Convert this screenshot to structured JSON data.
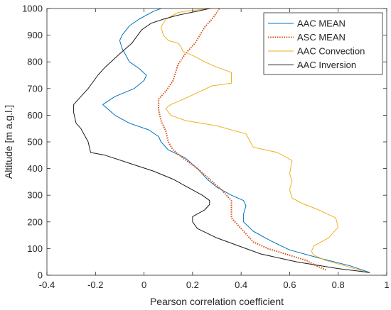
{
  "chart_data": {
    "type": "line",
    "title": "",
    "xlabel": "Pearson correlation coefficient",
    "ylabel": "Altitude [m a.g.l.]",
    "xlim": [
      -0.4,
      1.0
    ],
    "ylim": [
      0,
      1000
    ],
    "xticks": [
      "-0.4",
      "-0.2",
      "0",
      "0.2",
      "0.4",
      "0.6",
      "0.8",
      "1"
    ],
    "yticks": [
      "0",
      "100",
      "200",
      "300",
      "400",
      "500",
      "600",
      "700",
      "800",
      "900",
      "1000"
    ],
    "grid": false,
    "legend_position": "top-right",
    "series": [
      {
        "name": "AAC MEAN",
        "color": "#0072BD",
        "style": "solid",
        "points": [
          [
            0.93,
            10
          ],
          [
            0.85,
            35
          ],
          [
            0.72,
            65
          ],
          [
            0.6,
            95
          ],
          [
            0.52,
            130
          ],
          [
            0.45,
            165
          ],
          [
            0.41,
            200
          ],
          [
            0.41,
            230
          ],
          [
            0.42,
            260
          ],
          [
            0.41,
            280
          ],
          [
            0.36,
            300
          ],
          [
            0.3,
            330
          ],
          [
            0.26,
            360
          ],
          [
            0.22,
            400
          ],
          [
            0.17,
            440
          ],
          [
            0.1,
            470
          ],
          [
            0.07,
            500
          ],
          [
            0.06,
            520
          ],
          [
            0.02,
            545
          ],
          [
            -0.06,
            570
          ],
          [
            -0.12,
            600
          ],
          [
            -0.17,
            640
          ],
          [
            -0.12,
            670
          ],
          [
            -0.04,
            700
          ],
          [
            0.0,
            730
          ],
          [
            0.01,
            750
          ],
          [
            -0.02,
            775
          ],
          [
            -0.06,
            800
          ],
          [
            -0.09,
            850
          ],
          [
            -0.1,
            880
          ],
          [
            -0.09,
            900
          ],
          [
            -0.06,
            935
          ],
          [
            -0.02,
            960
          ],
          [
            0.04,
            990
          ],
          [
            0.07,
            1000
          ]
        ]
      },
      {
        "name": "ASC MEAN",
        "color": "#D95319",
        "style": "dotted",
        "points": [
          [
            0.75,
            20
          ],
          [
            0.71,
            35
          ],
          [
            0.67,
            55
          ],
          [
            0.6,
            75
          ],
          [
            0.51,
            100
          ],
          [
            0.45,
            125
          ],
          [
            0.42,
            155
          ],
          [
            0.39,
            185
          ],
          [
            0.36,
            215
          ],
          [
            0.36,
            250
          ],
          [
            0.36,
            280
          ],
          [
            0.32,
            320
          ],
          [
            0.27,
            360
          ],
          [
            0.22,
            400
          ],
          [
            0.16,
            440
          ],
          [
            0.12,
            470
          ],
          [
            0.1,
            500
          ],
          [
            0.09,
            540
          ],
          [
            0.07,
            580
          ],
          [
            0.06,
            620
          ],
          [
            0.06,
            660
          ],
          [
            0.09,
            690
          ],
          [
            0.12,
            730
          ],
          [
            0.13,
            760
          ],
          [
            0.14,
            790
          ],
          [
            0.17,
            830
          ],
          [
            0.21,
            870
          ],
          [
            0.23,
            900
          ],
          [
            0.25,
            930
          ],
          [
            0.28,
            960
          ],
          [
            0.3,
            985
          ],
          [
            0.31,
            1000
          ]
        ]
      },
      {
        "name": "AAC Convection",
        "color": "#EDB120",
        "style": "solid",
        "points": [
          [
            0.92,
            10
          ],
          [
            0.83,
            35
          ],
          [
            0.75,
            55
          ],
          [
            0.7,
            75
          ],
          [
            0.69,
            90
          ],
          [
            0.7,
            110
          ],
          [
            0.76,
            140
          ],
          [
            0.8,
            180
          ],
          [
            0.79,
            215
          ],
          [
            0.72,
            245
          ],
          [
            0.65,
            270
          ],
          [
            0.61,
            290
          ],
          [
            0.6,
            320
          ],
          [
            0.61,
            355
          ],
          [
            0.6,
            380
          ],
          [
            0.61,
            430
          ],
          [
            0.55,
            460
          ],
          [
            0.45,
            480
          ],
          [
            0.42,
            530
          ],
          [
            0.3,
            560
          ],
          [
            0.17,
            580
          ],
          [
            0.11,
            600
          ],
          [
            0.09,
            625
          ],
          [
            0.11,
            640
          ],
          [
            0.15,
            655
          ],
          [
            0.21,
            680
          ],
          [
            0.28,
            710
          ],
          [
            0.36,
            720
          ],
          [
            0.36,
            760
          ],
          [
            0.3,
            780
          ],
          [
            0.25,
            800
          ],
          [
            0.21,
            820
          ],
          [
            0.16,
            840
          ],
          [
            0.15,
            860
          ],
          [
            0.14,
            870
          ],
          [
            0.1,
            880
          ],
          [
            0.08,
            900
          ],
          [
            0.07,
            930
          ],
          [
            0.09,
            960
          ],
          [
            0.13,
            980
          ],
          [
            0.14,
            985
          ],
          [
            0.19,
            992
          ],
          [
            0.28,
            1000
          ]
        ]
      },
      {
        "name": "AAC Inversion",
        "color": "#1a1a1a",
        "style": "solid",
        "points": [
          [
            0.93,
            10
          ],
          [
            0.8,
            25
          ],
          [
            0.63,
            50
          ],
          [
            0.48,
            80
          ],
          [
            0.39,
            110
          ],
          [
            0.3,
            140
          ],
          [
            0.22,
            175
          ],
          [
            0.2,
            200
          ],
          [
            0.2,
            220
          ],
          [
            0.25,
            245
          ],
          [
            0.27,
            265
          ],
          [
            0.27,
            280
          ],
          [
            0.24,
            300
          ],
          [
            0.18,
            330
          ],
          [
            0.12,
            360
          ],
          [
            0.04,
            390
          ],
          [
            -0.06,
            420
          ],
          [
            -0.16,
            450
          ],
          [
            -0.22,
            460
          ],
          [
            -0.23,
            500
          ],
          [
            -0.26,
            550
          ],
          [
            -0.28,
            570
          ],
          [
            -0.29,
            610
          ],
          [
            -0.29,
            640
          ],
          [
            -0.26,
            670
          ],
          [
            -0.23,
            700
          ],
          [
            -0.19,
            750
          ],
          [
            -0.16,
            780
          ],
          [
            -0.1,
            830
          ],
          [
            -0.05,
            870
          ],
          [
            -0.01,
            920
          ],
          [
            0.03,
            945
          ],
          [
            0.08,
            960
          ],
          [
            0.14,
            975
          ],
          [
            0.22,
            990
          ],
          [
            0.27,
            1000
          ]
        ]
      }
    ]
  }
}
